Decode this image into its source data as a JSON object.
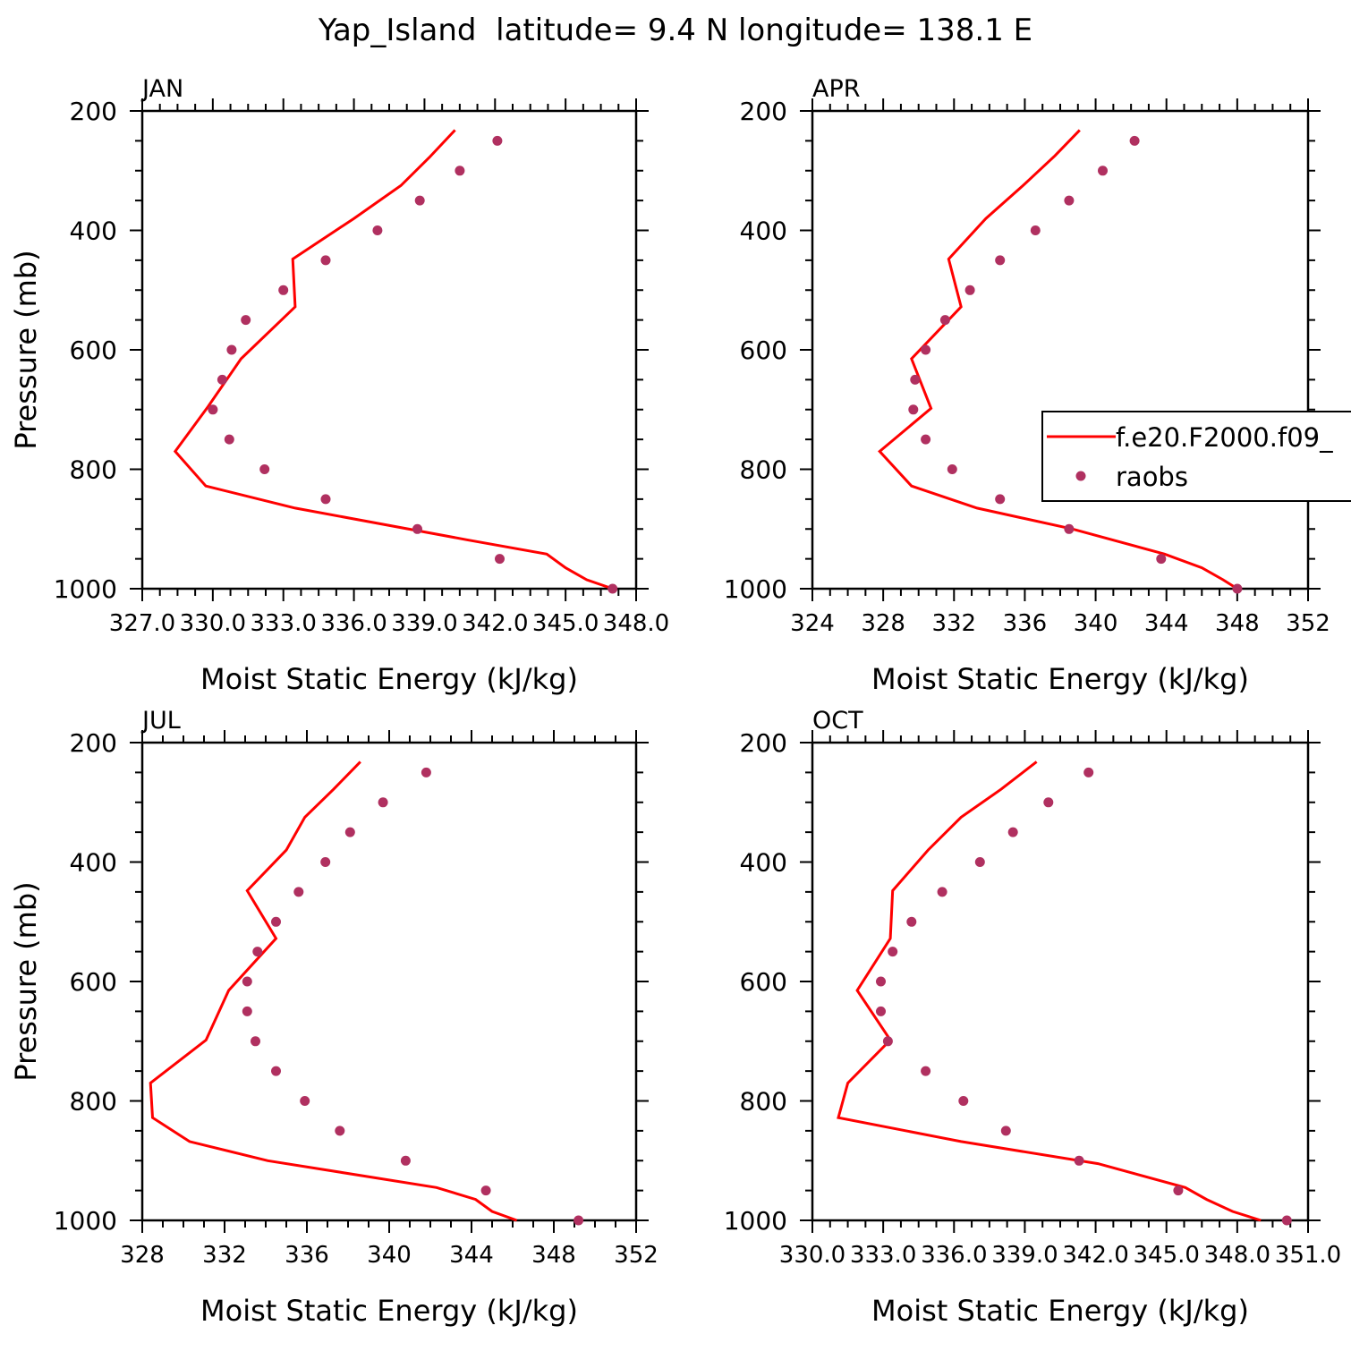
{
  "title": "Yap_Island  latitude= 9.4 N longitude= 138.1 E",
  "colors": {
    "model": "#ff0000",
    "obs": "#b03060",
    "axis": "#000000",
    "background": "#ffffff"
  },
  "chart_data": [
    {
      "type": "line",
      "panel_label": "JAN",
      "xlabel": "Moist Static Energy (kJ/kg)",
      "ylabel": "Pressure (mb)",
      "xlim": [
        327.0,
        348.0
      ],
      "xtick_values": [
        327,
        330,
        333,
        336,
        339,
        342,
        345,
        348
      ],
      "xtick_labels": [
        "327.0",
        "330.0",
        "333.0",
        "336.0",
        "339.0",
        "342.0",
        "345.0",
        "348.0"
      ],
      "ylim": [
        1000,
        200
      ],
      "ytick_values": [
        200,
        400,
        600,
        800,
        1000
      ],
      "ytick_labels": [
        "200",
        "400",
        "600",
        "800",
        "1000"
      ],
      "ylabel_shown": true,
      "legend_shown": false,
      "series": [
        {
          "name": "f.e20.F2000.f09_",
          "style": "line",
          "x": [
            340.3,
            339.2,
            338.0,
            336.0,
            333.4,
            333.5,
            331.2,
            329.8,
            328.4,
            329.7,
            333.5,
            340.8,
            344.2,
            345.0,
            345.9,
            347.0
          ],
          "y": [
            232,
            278,
            325,
            380,
            448,
            528,
            615,
            695,
            770,
            828,
            865,
            918,
            942,
            965,
            985,
            1000
          ]
        },
        {
          "name": "raobs",
          "style": "points",
          "x": [
            342.1,
            340.5,
            338.8,
            337.0,
            334.8,
            333.0,
            331.4,
            330.8,
            330.4,
            330.0,
            330.7,
            332.2,
            334.8,
            338.7,
            342.2,
            347.0
          ],
          "y": [
            250,
            300,
            350,
            400,
            450,
            500,
            550,
            600,
            650,
            700,
            750,
            800,
            850,
            900,
            950,
            1000
          ]
        }
      ]
    },
    {
      "type": "line",
      "panel_label": "APR",
      "xlabel": "Moist Static Energy (kJ/kg)",
      "ylabel": "Pressure (mb)",
      "xlim": [
        324,
        352
      ],
      "xtick_values": [
        324,
        328,
        332,
        336,
        340,
        344,
        348,
        352
      ],
      "xtick_labels": [
        "324",
        "328",
        "332",
        "336",
        "340",
        "344",
        "348",
        "352"
      ],
      "ylim": [
        1000,
        200
      ],
      "ytick_values": [
        200,
        400,
        600,
        800,
        1000
      ],
      "ytick_labels": [
        "200",
        "400",
        "600",
        "800",
        "1000"
      ],
      "ylabel_shown": false,
      "legend_shown": true,
      "series": [
        {
          "name": "f.e20.F2000.f09_",
          "style": "line",
          "x": [
            339.1,
            337.7,
            335.9,
            333.8,
            331.7,
            332.4,
            329.6,
            330.7,
            327.8,
            329.6,
            333.3,
            338.7,
            343.9,
            346.0,
            347.2,
            348.0
          ],
          "y": [
            232,
            275,
            325,
            380,
            448,
            528,
            615,
            698,
            770,
            828,
            865,
            900,
            942,
            965,
            985,
            1000
          ]
        },
        {
          "name": "raobs",
          "style": "points",
          "x": [
            342.2,
            340.4,
            338.5,
            336.6,
            334.6,
            332.9,
            331.5,
            330.4,
            329.8,
            329.7,
            330.4,
            331.9,
            334.6,
            338.5,
            343.7,
            348.0
          ],
          "y": [
            250,
            300,
            350,
            400,
            450,
            500,
            550,
            600,
            650,
            700,
            750,
            800,
            850,
            900,
            950,
            1000
          ]
        }
      ]
    },
    {
      "type": "line",
      "panel_label": "JUL",
      "xlabel": "Moist Static Energy (kJ/kg)",
      "ylabel": "Pressure (mb)",
      "xlim": [
        328,
        352
      ],
      "xtick_values": [
        328,
        332,
        336,
        340,
        344,
        348,
        352
      ],
      "xtick_labels": [
        "328",
        "332",
        "336",
        "340",
        "344",
        "348",
        "352"
      ],
      "ylim": [
        1000,
        200
      ],
      "ytick_values": [
        200,
        400,
        600,
        800,
        1000
      ],
      "ytick_labels": [
        "200",
        "400",
        "600",
        "800",
        "1000"
      ],
      "ylabel_shown": true,
      "legend_shown": false,
      "series": [
        {
          "name": "f.e20.F2000.f09_",
          "style": "line",
          "x": [
            338.6,
            337.3,
            335.9,
            335.0,
            333.1,
            334.5,
            332.2,
            331.1,
            328.4,
            328.5,
            330.3,
            334.1,
            342.3,
            344.2,
            345.0,
            346.2
          ],
          "y": [
            232,
            278,
            325,
            380,
            448,
            528,
            615,
            698,
            770,
            828,
            868,
            900,
            945,
            965,
            985,
            1000
          ]
        },
        {
          "name": "raobs",
          "style": "points",
          "x": [
            341.8,
            339.7,
            338.1,
            336.9,
            335.6,
            334.5,
            333.6,
            333.1,
            333.1,
            333.5,
            334.5,
            335.9,
            337.6,
            340.8,
            344.7,
            349.2
          ],
          "y": [
            250,
            300,
            350,
            400,
            450,
            500,
            550,
            600,
            650,
            700,
            750,
            800,
            850,
            900,
            950,
            1000
          ]
        }
      ]
    },
    {
      "type": "line",
      "panel_label": "OCT",
      "xlabel": "Moist Static Energy (kJ/kg)",
      "ylabel": "Pressure (mb)",
      "xlim": [
        330.0,
        351.0
      ],
      "xtick_values": [
        330,
        333,
        336,
        339,
        342,
        345,
        348,
        351
      ],
      "xtick_labels": [
        "330.0",
        "333.0",
        "336.0",
        "339.0",
        "342.0",
        "345.0",
        "348.0",
        "351.0"
      ],
      "ylim": [
        1000,
        200
      ],
      "ytick_values": [
        200,
        400,
        600,
        800,
        1000
      ],
      "ytick_labels": [
        "200",
        "400",
        "600",
        "800",
        "1000"
      ],
      "ylabel_shown": false,
      "legend_shown": false,
      "series": [
        {
          "name": "f.e20.F2000.f09_",
          "style": "line",
          "x": [
            339.5,
            338.0,
            336.3,
            334.9,
            333.4,
            333.3,
            331.9,
            333.3,
            331.5,
            331.1,
            336.3,
            342.1,
            345.8,
            346.7,
            347.8,
            349.0
          ],
          "y": [
            232,
            278,
            325,
            380,
            448,
            528,
            615,
            698,
            770,
            828,
            868,
            905,
            945,
            965,
            985,
            1000
          ]
        },
        {
          "name": "raobs",
          "style": "points",
          "x": [
            341.7,
            340.0,
            338.5,
            337.1,
            335.5,
            334.2,
            333.4,
            332.9,
            332.9,
            333.2,
            334.8,
            336.4,
            338.2,
            341.3,
            345.5,
            350.1
          ],
          "y": [
            250,
            300,
            350,
            400,
            450,
            500,
            550,
            600,
            650,
            700,
            750,
            800,
            850,
            900,
            950,
            1000
          ]
        }
      ]
    }
  ]
}
